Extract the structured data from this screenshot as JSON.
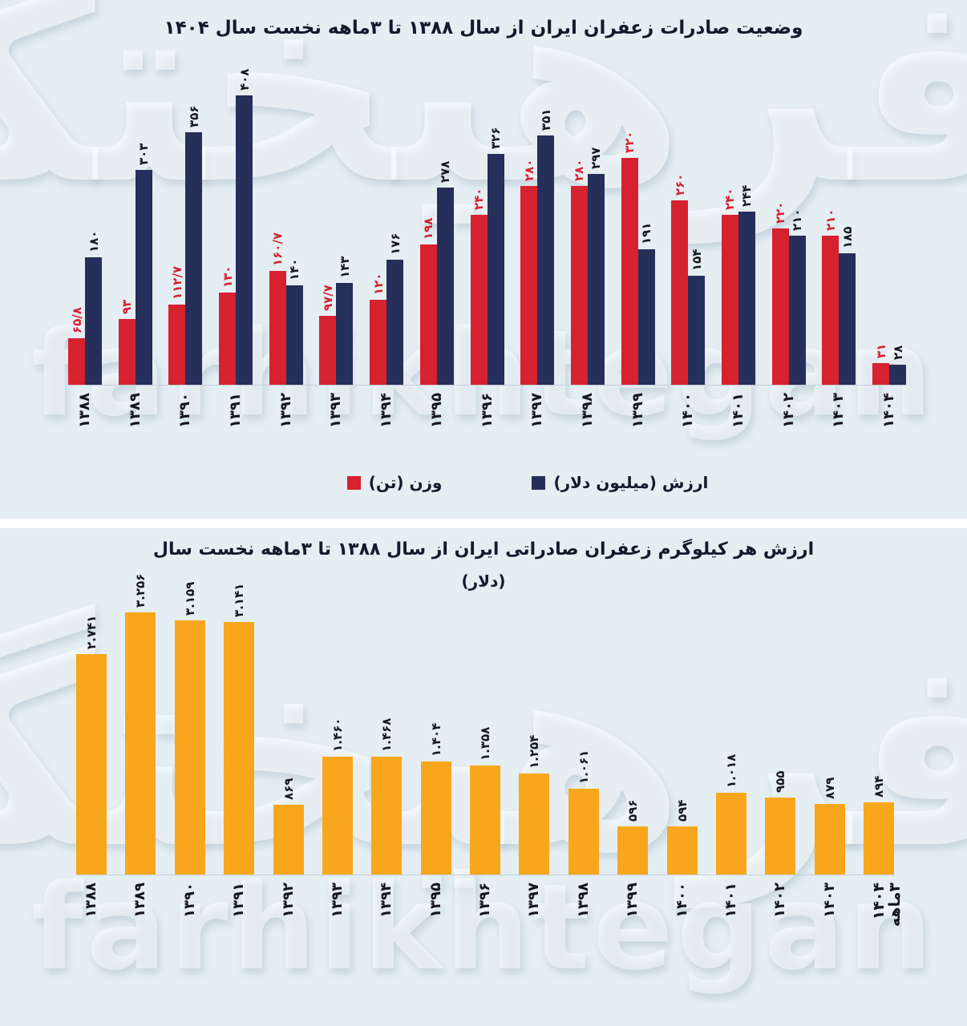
{
  "page": {
    "background": "#ffffff",
    "panel_background": "#e4eef3",
    "axis_line_color": "#c3ced6"
  },
  "watermark": {
    "persian": "فرهیختگان",
    "latin": "farhikhtegan"
  },
  "chart_data": [
    {
      "type": "bar",
      "title": "وضعیت صادرات زعفران ایران از سال ۱۳۸۸ تا ۳ماهه نخست سال ۱۴۰۴",
      "categories": [
        "۱۳۸۸",
        "۱۳۸۹",
        "۱۳۹۰",
        "۱۳۹۱",
        "۱۳۹۲",
        "۱۳۹۳",
        "۱۳۹۴",
        "۱۳۹۵",
        "۱۳۹۶",
        "۱۳۹۷",
        "۱۳۹۸",
        "۱۳۹۹",
        "۱۴۰۰",
        "۱۴۰۱",
        "۱۴۰۲",
        "۱۴۰۳",
        "۱۴۰۴"
      ],
      "series": [
        {
          "id": "weight",
          "name": "وزن (تن)",
          "color": "#d6212f",
          "label_color": "#d6212f",
          "values": [
            65.8,
            93,
            112.7,
            130,
            160.7,
            97.7,
            120,
            198,
            240,
            280,
            280,
            320,
            260,
            240,
            220,
            210,
            31
          ],
          "labels": [
            "۶۵/۸",
            "۹۳",
            "۱۱۲/۷",
            "۱۳۰",
            "۱۶۰/۷",
            "۹۷/۷",
            "۱۲۰",
            "۱۹۸",
            "۲۴۰",
            "۲۸۰",
            "۲۸۰",
            "۳۲۰",
            "۲۶۰",
            "۲۴۰",
            "۲۲۰",
            "۲۱۰",
            "۳۱"
          ]
        },
        {
          "id": "value",
          "name": "ارزش (میلیون دلار)",
          "color": "#262f5a",
          "label_color": "#17171f",
          "values": [
            180,
            303,
            356,
            408,
            140,
            143,
            176,
            278,
            326,
            351,
            297,
            191,
            154,
            244,
            210,
            185,
            28
          ],
          "labels": [
            "۱۸۰",
            "۳۰۳",
            "۳۵۶",
            "۴۰۸",
            "۱۴۰",
            "۱۴۳",
            "۱۷۶",
            "۲۷۸",
            "۳۲۶",
            "۳۵۱",
            "۲۹۷",
            "۱۹۱",
            "۱۵۴",
            "۲۴۴",
            "۲۱۰",
            "۱۸۵",
            "۲۸"
          ]
        }
      ],
      "ylim": [
        0,
        408
      ],
      "grid": false,
      "legend_position": "bottom"
    },
    {
      "type": "bar",
      "title": "ارزش هر کیلوگرم زعفران صادراتی ایران از سال ۱۳۸۸ تا ۳ماهه نخست سال",
      "subtitle": "(دلار)",
      "categories": [
        "۱۳۸۸",
        "۱۳۸۹",
        "۱۳۹۰",
        "۱۳۹۱",
        "۱۳۹۲",
        "۱۳۹۳",
        "۱۳۹۴",
        "۱۳۹۵",
        "۱۳۹۶",
        "۱۳۹۷",
        "۱۳۹۸",
        "۱۳۹۹",
        "۱۴۰۰",
        "۱۴۰۱",
        "۱۴۰۲",
        "۱۴۰۳",
        "۳ماهه ۱۴۰۴"
      ],
      "series": [
        {
          "id": "price",
          "name": "ارزش هر کیلوگرم (دلار)",
          "color": "#f8a71d",
          "label_color": "#17171f",
          "values": [
            2741,
            3256,
            3159,
            3141,
            869,
            1460,
            1468,
            1404,
            1358,
            1254,
            1061,
            596,
            594,
            1018,
            955,
            879,
            894
          ],
          "labels": [
            "۲.۷۴۱",
            "۳.۲۵۶",
            "۳.۱۵۹",
            "۳.۱۴۱",
            "۸۶۹",
            "۱.۴۶۰",
            "۱.۴۶۸",
            "۱.۴۰۴",
            "۱.۳۵۸",
            "۱.۲۵۴",
            "۱.۰۶۱",
            "۵۹۶",
            "۵۹۴",
            "۱.۰۱۸",
            "۹۵۵",
            "۸۷۹",
            "۸۹۴"
          ],
          "xlabel_bold_last": true
        }
      ],
      "ylim": [
        0,
        3256
      ],
      "grid": false,
      "legend_position": "none"
    }
  ]
}
